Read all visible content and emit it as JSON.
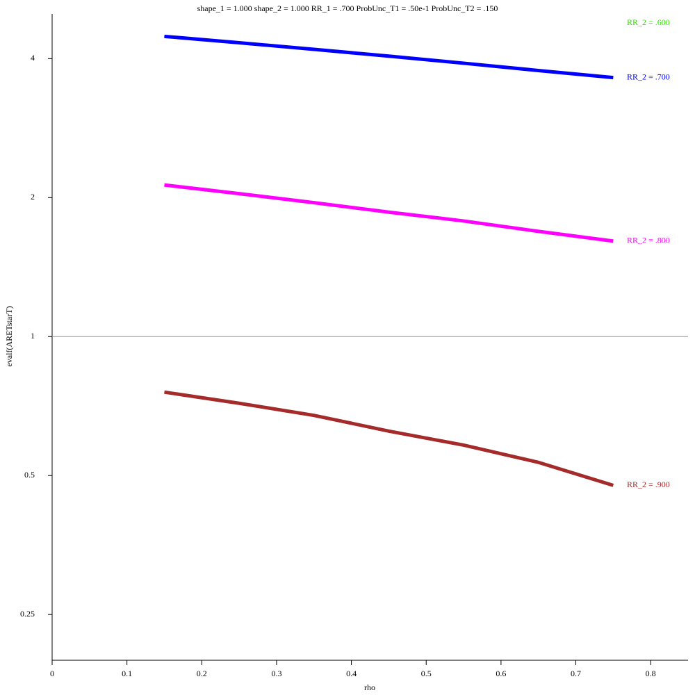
{
  "chart_data": {
    "type": "line",
    "title": "shape_1 = 1.000  shape_2 = 1.000  RR_1 = .700  ProbUnc_T1 = .50e-1  ProbUnc_T2 = .150",
    "x_label": "rho",
    "y_label": "evalf(ARETstarT)",
    "x": [
      0.15,
      0.25,
      0.35,
      0.45,
      0.55,
      0.65,
      0.75
    ],
    "series": [
      {
        "name": "RR_2 = .600",
        "color": "#33dd00",
        "values": [
          null,
          null,
          null,
          null,
          null,
          null,
          null
        ]
      },
      {
        "name": "RR_2 = .700",
        "color": "#0000ff",
        "values": [
          4.47,
          4.33,
          4.19,
          4.05,
          3.91,
          3.77,
          3.64
        ]
      },
      {
        "name": "RR_2 = .800",
        "color": "#ff00ff",
        "values": [
          2.13,
          2.04,
          1.95,
          1.86,
          1.78,
          1.69,
          1.61
        ]
      },
      {
        "name": "RR_2 = .900",
        "color": "#a52a2a",
        "values": [
          0.758,
          0.717,
          0.675,
          0.624,
          0.582,
          0.534,
          0.476
        ]
      }
    ],
    "xlim": [
      0,
      0.85
    ],
    "xticks": [
      0,
      0.1,
      0.2,
      0.3,
      0.4,
      0.5,
      0.6,
      0.7,
      0.8
    ],
    "ylim": [
      0.199,
      5.0
    ],
    "yticks": [
      0.25,
      0.5,
      1,
      2,
      4
    ],
    "y_scale": "log",
    "reference_line": 1
  }
}
